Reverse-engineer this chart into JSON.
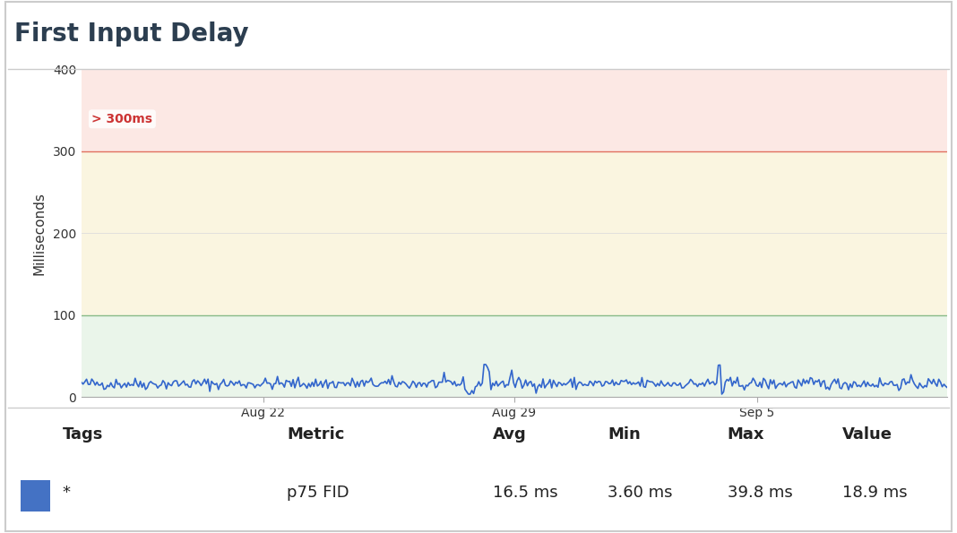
{
  "title": "First Input Delay",
  "ylabel": "Milliseconds",
  "ylim": [
    0,
    400
  ],
  "yticks": [
    0,
    100,
    200,
    300,
    400
  ],
  "zone_good_color": "#eaf5ea",
  "zone_good_border": "#88bb88",
  "zone_needs_improvement_color": "#faf5e0",
  "zone_needs_improvement_border": "#d8c870",
  "zone_poor_color": "#fce8e4",
  "zone_poor_border": "#e07060",
  "zone_poor_label": "> 300ms",
  "zone_poor_label_color": "#cc3333",
  "line_color": "#3366cc",
  "line_width": 1.2,
  "x_tick_labels": [
    "Aug 22",
    "Aug 29",
    "Sep 5"
  ],
  "x_tick_positions": [
    0.21,
    0.5,
    0.78
  ],
  "legend_tags_label": "Tags",
  "legend_metric_label": "Metric",
  "legend_avg_label": "Avg",
  "legend_min_label": "Min",
  "legend_max_label": "Max",
  "legend_value_label": "Value",
  "row_tag": "*",
  "row_metric": "p75 FID",
  "row_avg": "16.5 ms",
  "row_min": "3.60 ms",
  "row_max": "39.8 ms",
  "row_value": "18.9 ms",
  "legend_color": "#4472c4",
  "background_color": "#ffffff",
  "title_fontsize": 20,
  "axis_fontsize": 11,
  "tick_fontsize": 10,
  "table_header_fontsize": 13,
  "table_data_fontsize": 13,
  "avg_value": 16.5,
  "min_value": 3.6,
  "max_value": 39.8,
  "num_points": 500
}
